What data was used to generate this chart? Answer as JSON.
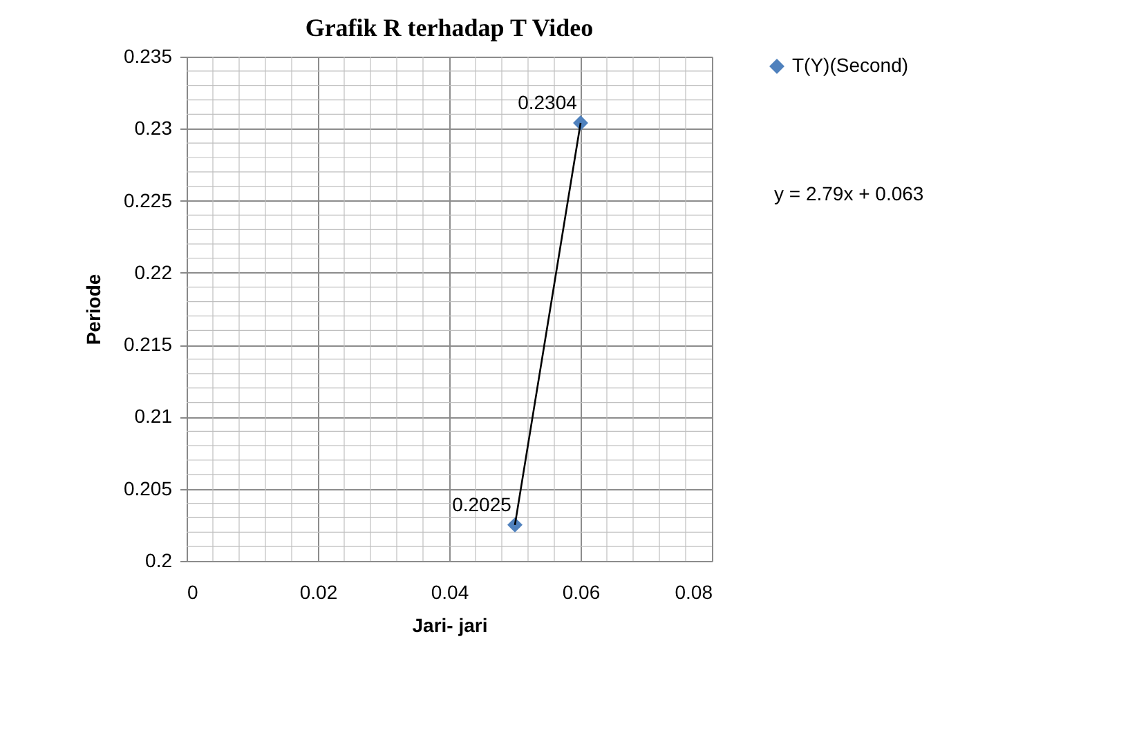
{
  "chart_data": {
    "type": "scatter",
    "title": "Grafik R terhadap T Video",
    "xlabel": "Jari- jari",
    "ylabel": "Periode",
    "x": [
      0.05,
      0.06
    ],
    "series": [
      {
        "name": "T(Y)(Second)",
        "color": "#4f81bd",
        "values": [
          0.2025,
          0.2304
        ],
        "marker": "diamond",
        "value_labels": [
          "0.2025",
          "0.2304"
        ]
      },
      {
        "type": "line",
        "color": "#000000",
        "x": [
          0.05,
          0.06
        ],
        "values": [
          0.2025,
          0.2304
        ]
      }
    ],
    "xlim": [
      0,
      0.08
    ],
    "xticks": [
      0,
      0.02,
      0.04,
      0.06,
      0.08
    ],
    "ylim": [
      0.2,
      0.235
    ],
    "yticks": [
      0.2,
      0.205,
      0.21,
      0.215,
      0.22,
      0.225,
      0.23,
      0.235
    ],
    "grid": true,
    "legend": "right",
    "annotations": [
      "y = 2.79x + 0.063"
    ]
  }
}
